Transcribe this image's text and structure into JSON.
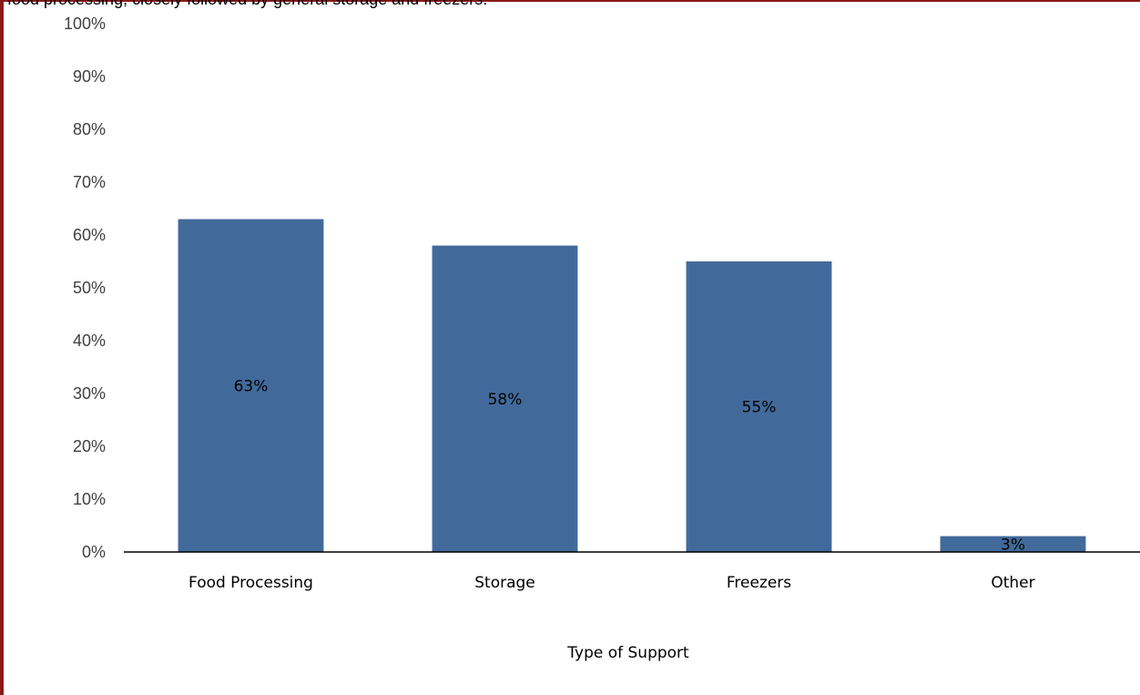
{
  "caption": "food processing, closely followed by general storage and freezers.",
  "chart_data": {
    "type": "bar",
    "categories": [
      "Food Processing",
      "Storage",
      "Freezers",
      "Other"
    ],
    "values": [
      63,
      58,
      55,
      3
    ],
    "data_labels": [
      "63%",
      "58%",
      "55%",
      "3%"
    ],
    "xlabel": "Type of Support",
    "ylabel": "",
    "ylim": [
      0,
      100
    ],
    "y_ticks": [
      "0%",
      "10%",
      "20%",
      "30%",
      "40%",
      "50%",
      "60%",
      "70%",
      "80%",
      "90%",
      "100%"
    ],
    "grid": false,
    "legend": "none",
    "bar_color": "#416a9b"
  }
}
